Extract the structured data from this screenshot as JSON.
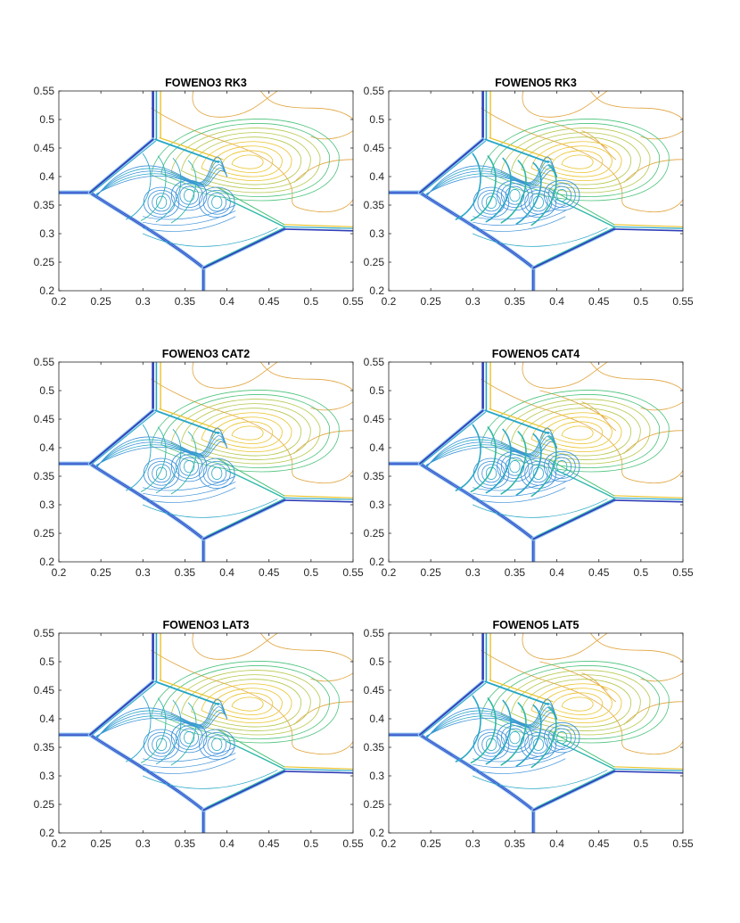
{
  "figure": {
    "description_title": ""
  },
  "palette": {
    "strong_shock": "#3b4fd6",
    "shock_edge": "#2f3fb8",
    "cyan": "#27a7c7",
    "teal": "#2bb8a8",
    "green": "#49c27a",
    "yellow": "#e9c42b",
    "orange": "#e0a23a",
    "light_blue": "#3a8fd8"
  },
  "chart_data": [
    {
      "type": "contour",
      "title": "FOWENO3 RK3",
      "xlim": [
        0.2,
        0.55
      ],
      "ylim": [
        0.2,
        0.55
      ],
      "xticks": [
        "0.2",
        "0.25",
        "0.3",
        "0.35",
        "0.4",
        "0.45",
        "0.5",
        "0.55"
      ],
      "yticks": [
        "0.2",
        "0.25",
        "0.3",
        "0.35",
        "0.4",
        "0.45",
        "0.5",
        "0.55"
      ],
      "order": 3
    },
    {
      "type": "contour",
      "title": "FOWENO5 RK3",
      "xlim": [
        0.2,
        0.55
      ],
      "ylim": [
        0.2,
        0.55
      ],
      "xticks": [
        "0.2",
        "0.25",
        "0.3",
        "0.35",
        "0.4",
        "0.45",
        "0.5",
        "0.55"
      ],
      "yticks": [
        "0.2",
        "0.25",
        "0.3",
        "0.35",
        "0.4",
        "0.45",
        "0.5",
        "0.55"
      ],
      "order": 5
    },
    {
      "type": "contour",
      "title": "FOWENO3 CAT2",
      "xlim": [
        0.2,
        0.55
      ],
      "ylim": [
        0.2,
        0.55
      ],
      "xticks": [
        "0.2",
        "0.25",
        "0.3",
        "0.35",
        "0.4",
        "0.45",
        "0.5",
        "0.55"
      ],
      "yticks": [
        "0.2",
        "0.25",
        "0.3",
        "0.35",
        "0.4",
        "0.45",
        "0.5",
        "0.55"
      ],
      "order": 3
    },
    {
      "type": "contour",
      "title": "FOWENO5 CAT4",
      "xlim": [
        0.2,
        0.55
      ],
      "ylim": [
        0.2,
        0.55
      ],
      "xticks": [
        "0.2",
        "0.25",
        "0.3",
        "0.35",
        "0.4",
        "0.45",
        "0.5",
        "0.55"
      ],
      "yticks": [
        "0.2",
        "0.25",
        "0.3",
        "0.35",
        "0.4",
        "0.45",
        "0.5",
        "0.55"
      ],
      "order": 5
    },
    {
      "type": "contour",
      "title": "FOWENO3 LAT3",
      "xlim": [
        0.2,
        0.55
      ],
      "ylim": [
        0.2,
        0.55
      ],
      "xticks": [
        "0.2",
        "0.25",
        "0.3",
        "0.35",
        "0.4",
        "0.45",
        "0.5",
        "0.55"
      ],
      "yticks": [
        "0.2",
        "0.25",
        "0.3",
        "0.35",
        "0.4",
        "0.45",
        "0.5",
        "0.55"
      ],
      "order": 3
    },
    {
      "type": "contour",
      "title": "FOWENO5 LAT5",
      "xlim": [
        0.2,
        0.55
      ],
      "ylim": [
        0.2,
        0.55
      ],
      "xticks": [
        "0.2",
        "0.25",
        "0.3",
        "0.35",
        "0.4",
        "0.45",
        "0.5",
        "0.55"
      ],
      "yticks": [
        "0.2",
        "0.25",
        "0.3",
        "0.35",
        "0.4",
        "0.45",
        "0.5",
        "0.55"
      ],
      "order": 5
    }
  ]
}
